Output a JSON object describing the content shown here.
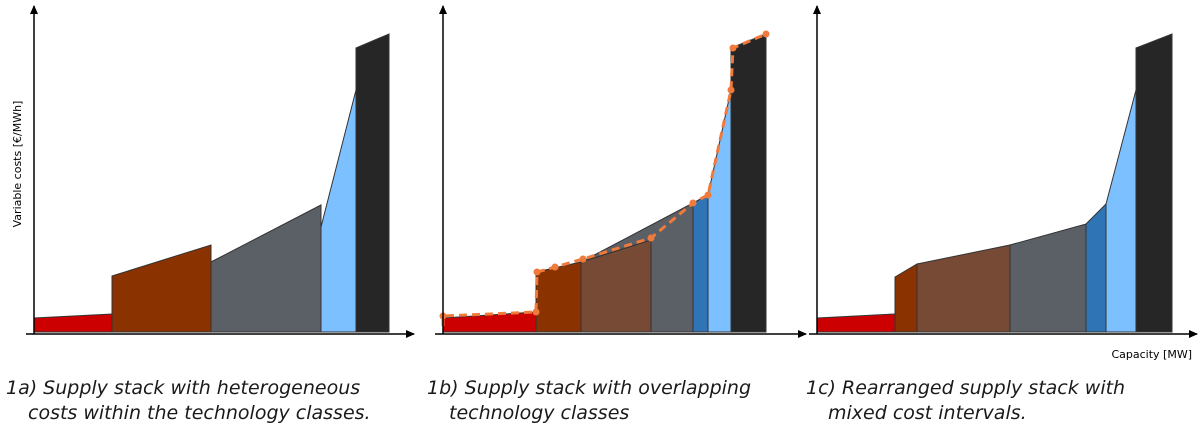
{
  "y_axis_label": "Variable costs [€/MWh]",
  "x_axis_label": "Capacity [MW]",
  "captions": [
    {
      "line1": "1a) Supply stack with heterogeneous",
      "line2": "costs within the technology classes."
    },
    {
      "line1": "1b) Supply stack with overlapping",
      "line2": "technology classes"
    },
    {
      "line1": "1c) Rearranged supply stack with",
      "line2": "mixed cost intervals."
    }
  ],
  "colors": {
    "red": "#cc0000",
    "dark_brown": "#8a3200",
    "brown": "#774a36",
    "slate": "#5b5f66",
    "dark_blue": "#2f75b5",
    "light_blue": "#7cc0ff",
    "black": "#262626",
    "curve": "#f07a3c"
  }
}
